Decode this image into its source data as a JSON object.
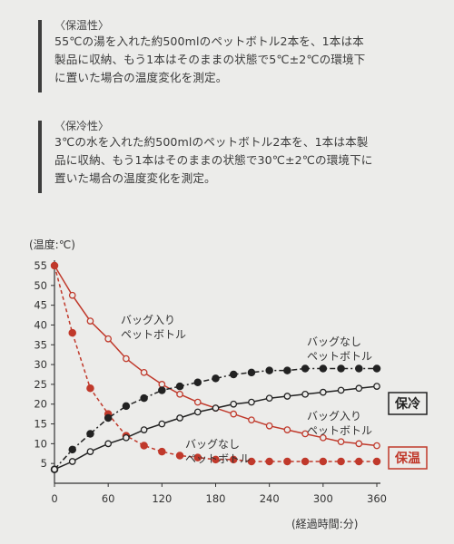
{
  "warm_section": {
    "heading": "〈保温性〉",
    "lines": [
      "55℃の湯を入れた約500mlのペットボトル2本を、1本は本",
      "製品に収納、もう1本はそのままの状態で5℃±2℃の環境下",
      "に置いた場合の温度変化を測定。"
    ]
  },
  "cold_section": {
    "heading": "〈保冷性〉",
    "lines": [
      "3℃の水を入れた約500mlのペットボトル2本を、1本は本製",
      "品に収納、もう1本はそのままの状態で30℃±2℃の環境下に",
      "置いた場合の温度変化を測定。"
    ]
  },
  "chart_data": {
    "type": "line",
    "ylabel": "(温度:℃)",
    "xlabel": "(経過時間:分)",
    "xlim": [
      0,
      360
    ],
    "ylim": [
      0,
      55
    ],
    "x_ticks": [
      0,
      60,
      120,
      180,
      240,
      300,
      360
    ],
    "y_ticks": [
      5,
      10,
      15,
      20,
      25,
      30,
      35,
      40,
      45,
      50,
      55
    ],
    "x": [
      0,
      20,
      40,
      60,
      80,
      100,
      120,
      140,
      160,
      180,
      200,
      220,
      240,
      260,
      280,
      300,
      320,
      340,
      360
    ],
    "series": [
      {
        "name": "バッグ入り\nペットボトル",
        "group": "保温",
        "color": "#c0392b",
        "style": "solid",
        "marker": "open-circle",
        "values": [
          55,
          47.5,
          41,
          36.5,
          31.5,
          28,
          25,
          22.5,
          20.5,
          19,
          17.5,
          16,
          14.5,
          13.5,
          12.5,
          11.5,
          10.5,
          10,
          9.5
        ]
      },
      {
        "name": "バッグなし\nペットボトル",
        "group": "保温",
        "color": "#c0392b",
        "style": "dashed",
        "marker": "filled-circle",
        "values": [
          55,
          38,
          24,
          17.5,
          12,
          9.5,
          8,
          7,
          6.5,
          6,
          6,
          5.5,
          5.5,
          5.5,
          5.5,
          5.5,
          5.5,
          5.5,
          5.5
        ]
      },
      {
        "name": "バッグなし\nペットボトル",
        "group": "保冷",
        "color": "#222222",
        "style": "dashdot",
        "marker": "filled-circle",
        "values": [
          3.5,
          8.5,
          12.5,
          16.5,
          19.5,
          21.5,
          23.5,
          24.5,
          25.5,
          26.5,
          27.5,
          28,
          28.5,
          28.5,
          29,
          29,
          29,
          29,
          29
        ]
      },
      {
        "name": "バッグ入り\nペットボトル",
        "group": "保冷",
        "color": "#222222",
        "style": "solid",
        "marker": "open-circle",
        "values": [
          3.5,
          5.5,
          8,
          10,
          11.5,
          13.5,
          15,
          16.5,
          18,
          19,
          20,
          20.5,
          21.5,
          22,
          22.5,
          23,
          23.5,
          24,
          24.5
        ]
      }
    ],
    "group_labels": [
      {
        "text": "保冷",
        "color": "#222222"
      },
      {
        "text": "保温",
        "color": "#c0392b"
      }
    ],
    "grid": false
  }
}
